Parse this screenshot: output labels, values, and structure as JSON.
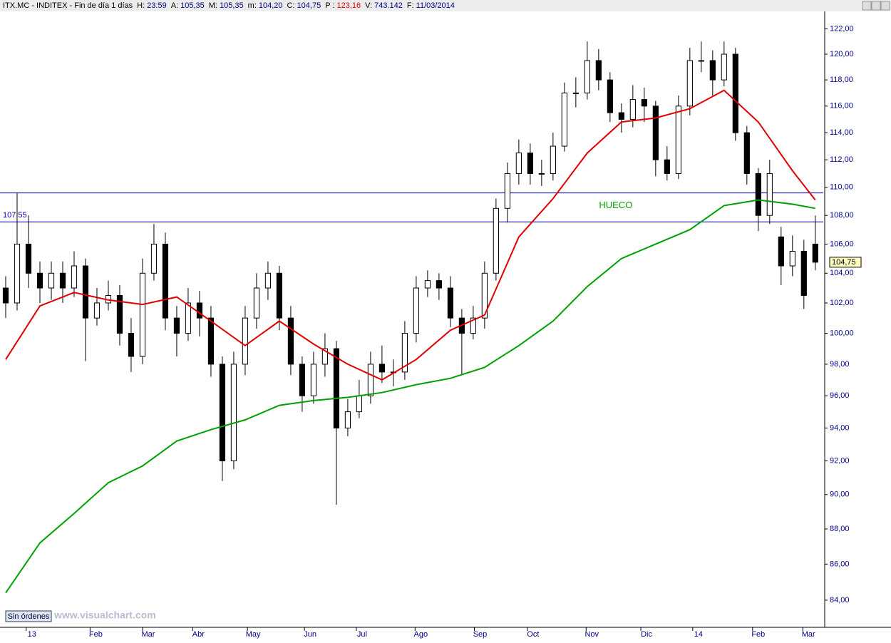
{
  "header": {
    "title": "ITX.MC - INDITEX - Fin de día 1 días",
    "fields": [
      {
        "label": "H:",
        "value": "23:59"
      },
      {
        "label": "A:",
        "value": "105,35"
      },
      {
        "label": "M:",
        "value": "105,35"
      },
      {
        "label": "m:",
        "value": "104,20"
      },
      {
        "label": "C:",
        "value": "104,75"
      },
      {
        "label": "P :",
        "value": "123,16"
      },
      {
        "label": "V:",
        "value": "743.142"
      },
      {
        "label": "F:",
        "value": "11/03/2014"
      }
    ]
  },
  "status": "Sin órdenes",
  "watermark": "www.visualchart.com",
  "chart_data": {
    "type": "candlestick",
    "log_scale": true,
    "up_color": "#ffffff",
    "down_color": "#000000",
    "xlim": [
      -0.5,
      71.7
    ],
    "ylim": [
      82.6,
      123.4
    ],
    "xticks": [
      {
        "value": 2.3,
        "label": "13"
      },
      {
        "value": 7.9,
        "label": "Feb"
      },
      {
        "value": 12.5,
        "label": "Mar"
      },
      {
        "value": 16.9,
        "label": "Abr"
      },
      {
        "value": 21.7,
        "label": "May"
      },
      {
        "value": 26.7,
        "label": "Jun"
      },
      {
        "value": 31.25,
        "label": "Jul"
      },
      {
        "value": 36.4,
        "label": "Ago"
      },
      {
        "value": 41.6,
        "label": "Sep"
      },
      {
        "value": 46.25,
        "label": "Oct"
      },
      {
        "value": 51.4,
        "label": "Nov"
      },
      {
        "value": 56.2,
        "label": "Dic"
      },
      {
        "value": 60.75,
        "label": "14"
      },
      {
        "value": 66,
        "label": "Feb"
      },
      {
        "value": 70.4,
        "label": "Mar"
      }
    ],
    "yticks": [
      {
        "value": 84,
        "label": "84,00"
      },
      {
        "value": 86,
        "label": "86,00"
      },
      {
        "value": 88,
        "label": "88,00"
      },
      {
        "value": 90,
        "label": "90,00"
      },
      {
        "value": 92,
        "label": "92,00"
      },
      {
        "value": 94,
        "label": "94,00"
      },
      {
        "value": 96,
        "label": "96,00"
      },
      {
        "value": 98,
        "label": "98,00"
      },
      {
        "value": 100,
        "label": "100,00"
      },
      {
        "value": 102,
        "label": "102,00"
      },
      {
        "value": 104,
        "label": "104,00"
      },
      {
        "value": 106,
        "label": "106,00"
      },
      {
        "value": 108,
        "label": "108,00"
      },
      {
        "value": 110,
        "label": "110,00"
      },
      {
        "value": 112,
        "label": "112,00"
      },
      {
        "value": 114,
        "label": "114,00"
      },
      {
        "value": 116,
        "label": "116,00"
      },
      {
        "value": 118,
        "label": "118,00"
      },
      {
        "value": 120,
        "label": "120,00"
      },
      {
        "value": 122,
        "label": "122,00"
      }
    ],
    "open": [
      103,
      102,
      106,
      104,
      103,
      104,
      103,
      104.5,
      101,
      102,
      102.5,
      100,
      98.5,
      104,
      106,
      101,
      100,
      102,
      101,
      98,
      92,
      98,
      101,
      103,
      104,
      101,
      98,
      96,
      98,
      99,
      94,
      95,
      96,
      98,
      97.5,
      97.5,
      100,
      103,
      103.5,
      103,
      101,
      100,
      101,
      104,
      108.5,
      111,
      112.5,
      111,
      111,
      113,
      117,
      117,
      119.5,
      118,
      115.5,
      115,
      116.5,
      116,
      112,
      111,
      116,
      119.5,
      119.5,
      118,
      120,
      114,
      111,
      108,
      106.5,
      104.5,
      105.5,
      106
    ],
    "high": [
      103.8,
      109.6,
      108,
      104.8,
      104.8,
      104.8,
      105.5,
      105,
      103,
      103.5,
      103.2,
      101,
      105,
      107.4,
      106.8,
      101.8,
      103,
      102.8,
      101.8,
      98.5,
      98.8,
      101.8,
      104,
      104.8,
      104.5,
      101.8,
      98.5,
      98.8,
      100,
      99.5,
      95.8,
      97,
      98.8,
      99.2,
      98.3,
      100.8,
      103.8,
      104.2,
      104,
      103.8,
      101.6,
      101.8,
      104.8,
      109.2,
      111.8,
      113.5,
      113.2,
      112,
      114,
      117.8,
      118.2,
      121,
      120.4,
      118.6,
      116.2,
      117.6,
      117.4,
      116.4,
      113,
      116.8,
      120.5,
      121,
      120.3,
      121,
      120.5,
      114.5,
      111.4,
      112,
      107.2,
      106.6,
      106.3,
      108
    ],
    "low": [
      101,
      101.5,
      103,
      102,
      102.2,
      102,
      102.4,
      98.2,
      100.5,
      101.5,
      99.2,
      97.5,
      98,
      103.5,
      100.2,
      98.5,
      99.5,
      99.8,
      97.2,
      90.8,
      91.5,
      97.3,
      100.3,
      102.2,
      100.2,
      97.3,
      95,
      95.5,
      97.2,
      89.4,
      93.5,
      94.6,
      95.5,
      96.8,
      96.6,
      97,
      99.4,
      102.4,
      102.2,
      100.4,
      97.3,
      99.6,
      100.3,
      103.5,
      107.5,
      110.2,
      110.2,
      110.1,
      110.5,
      112.6,
      115.9,
      116.5,
      117.2,
      114.8,
      114,
      114.4,
      114.8,
      110.8,
      110.5,
      110.6,
      115.3,
      118.6,
      116.8,
      117.5,
      113.4,
      110.2,
      106.9,
      107.4,
      103.2,
      103.8,
      101.6,
      104.2
    ],
    "close": [
      102,
      106,
      104,
      103,
      104,
      103,
      104.5,
      101,
      102,
      102.5,
      100,
      98.5,
      104,
      106,
      101,
      100,
      102,
      101,
      98,
      92,
      98,
      101,
      103,
      104,
      101,
      98,
      96,
      98,
      99,
      94,
      95,
      96,
      98,
      97.5,
      97.5,
      100,
      103,
      103.5,
      103,
      101,
      100,
      101,
      104,
      108.5,
      111,
      112.5,
      111,
      111,
      113,
      117,
      117,
      119.5,
      118,
      115.5,
      115,
      116.5,
      116,
      112,
      111,
      116,
      119.5,
      119.5,
      118,
      120,
      114,
      111,
      108,
      111,
      104.5,
      105.5,
      102.5,
      104.75
    ],
    "lines": [
      {
        "color": "#e00000",
        "x": [
          0,
          3,
          6,
          9,
          12,
          15,
          18,
          21,
          24,
          27,
          30,
          33,
          36,
          39,
          42,
          45,
          48,
          51,
          54,
          57,
          60,
          63,
          66,
          69,
          71
        ],
        "values": [
          98.3,
          101.8,
          102.7,
          102.2,
          101.9,
          102.4,
          100.8,
          99.2,
          100.8,
          99.3,
          98,
          97,
          98.3,
          100.2,
          101.2,
          106.5,
          109.2,
          112.5,
          114.8,
          115.1,
          115.8,
          117.2,
          114.8,
          111.2,
          109.1
        ]
      },
      {
        "color": "#00a000",
        "x": [
          0,
          3,
          6,
          9,
          12,
          15,
          18,
          21,
          24,
          27,
          30,
          33,
          36,
          39,
          42,
          45,
          48,
          51,
          54,
          57,
          60,
          63,
          66,
          69,
          71
        ],
        "values": [
          84.4,
          87.2,
          88.9,
          90.7,
          91.7,
          93.2,
          93.9,
          94.5,
          95.4,
          95.7,
          95.9,
          96.2,
          96.7,
          97.1,
          97.8,
          99.2,
          100.8,
          103.1,
          105,
          106,
          107,
          108.7,
          109.1,
          108.8,
          108.5
        ]
      }
    ],
    "levels": [
      {
        "value": 109.6,
        "color": "#0000a0"
      },
      {
        "value": 107.55,
        "label": "107,55",
        "color": "#0000a0"
      }
    ],
    "annotations": [
      {
        "text": "HUECO",
        "x": 53.5,
        "y": 108.7,
        "color": "#00a000"
      }
    ],
    "last_price": {
      "value": 104.75,
      "label": "104,75"
    }
  }
}
